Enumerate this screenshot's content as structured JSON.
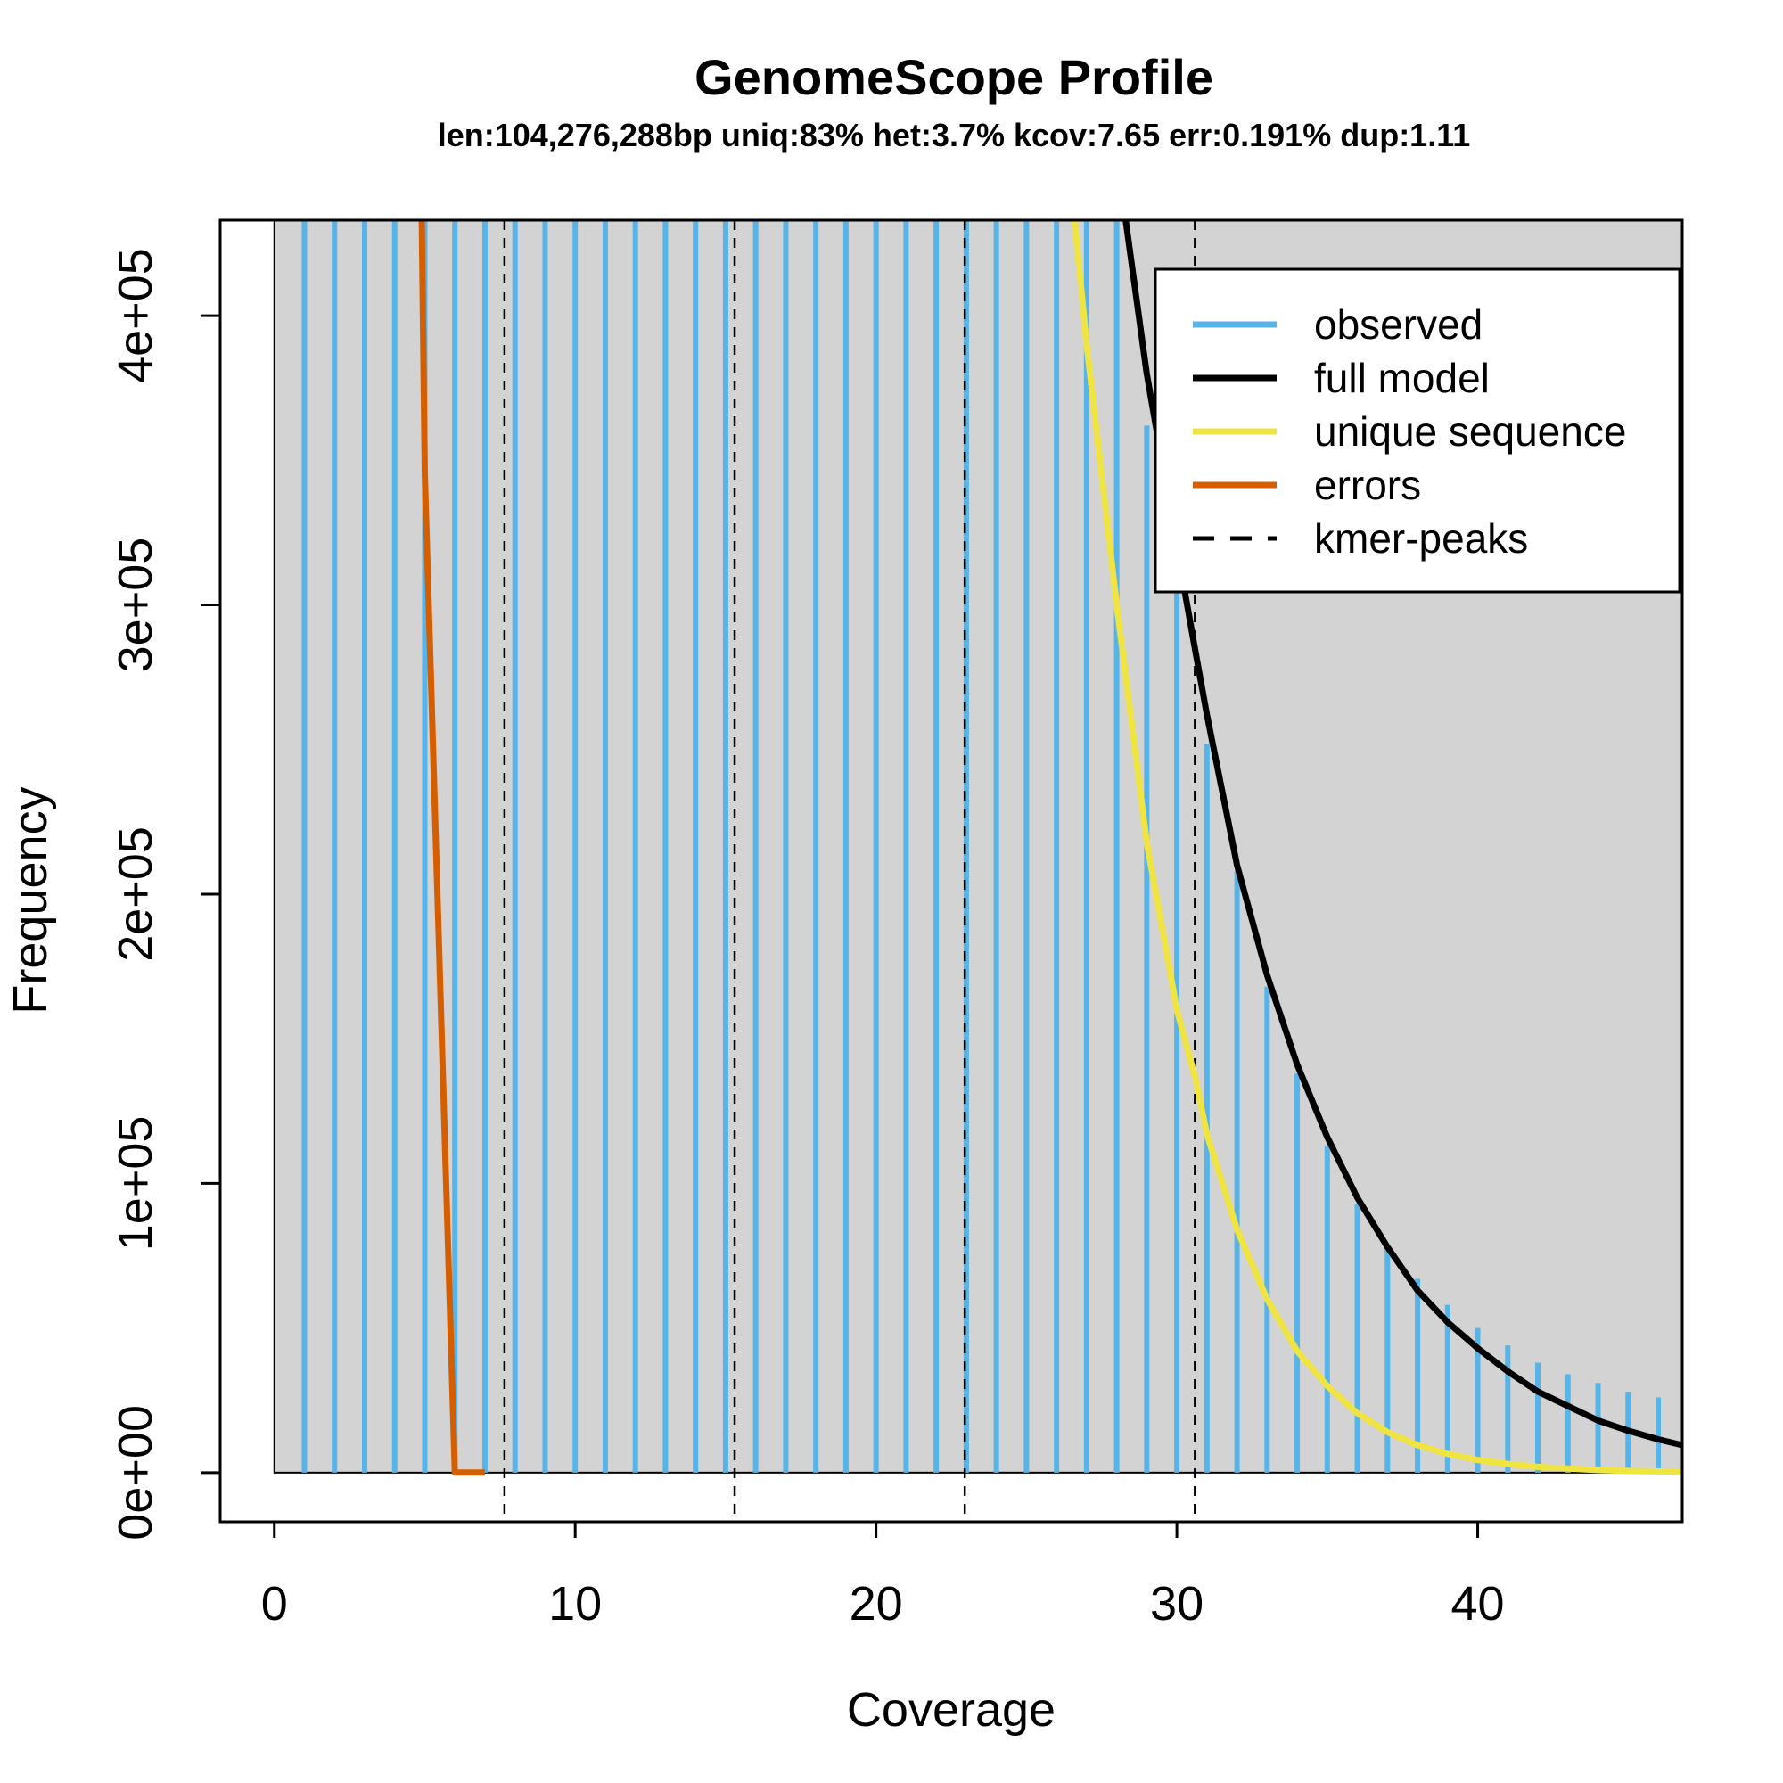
{
  "chart_data": {
    "type": "line",
    "title": "GenomeScope Profile",
    "subtitle": "len:104,276,288bp uniq:83% het:3.7% kcov:7.65 err:0.191% dup:1.11",
    "xlabel": "Coverage",
    "ylabel": "Frequency",
    "xlim": [
      -1.8,
      46.8
    ],
    "ylim": [
      -17000,
      433000
    ],
    "x_ticks": [
      0,
      10,
      20,
      30,
      40
    ],
    "x_tick_labels": [
      "0",
      "10",
      "20",
      "30",
      "40"
    ],
    "y_ticks": [
      0,
      100000,
      200000,
      300000,
      400000
    ],
    "y_tick_labels": [
      "0e+00",
      "1e+05",
      "2e+05",
      "3e+05",
      "4e+05"
    ],
    "legend_position": "top-right",
    "legend": [
      {
        "label": "observed",
        "color": "#56B4E9",
        "style": "solid"
      },
      {
        "label": "full model",
        "color": "#000000",
        "style": "solid"
      },
      {
        "label": "unique sequence",
        "color": "#F0E442",
        "style": "solid"
      },
      {
        "label": "errors",
        "color": "#D55E00",
        "style": "solid"
      },
      {
        "label": "kmer-peaks",
        "color": "#000000",
        "style": "dashed"
      }
    ],
    "colors": {
      "background": "#D3D3D3",
      "observed": "#56B4E9",
      "full_model": "#000000",
      "unique_sequence": "#F0E442",
      "errors": "#D55E00",
      "kmer_peaks": "#000000"
    },
    "observed": {
      "name": "observed",
      "x": [
        1,
        2,
        3,
        4,
        5,
        6,
        7,
        8,
        9,
        10,
        11,
        12,
        13,
        14,
        15,
        16,
        17,
        18,
        19,
        20,
        21,
        22,
        23,
        24,
        25,
        26,
        27,
        28,
        29,
        30,
        31,
        32,
        33,
        34,
        35,
        36,
        37,
        38,
        39,
        40,
        41,
        42,
        43,
        44,
        45,
        46
      ],
      "y": [
        433000,
        433000,
        433000,
        433000,
        433000,
        433000,
        433000,
        433000,
        433000,
        433000,
        433000,
        433000,
        433000,
        433000,
        433000,
        433000,
        433000,
        433000,
        433000,
        433000,
        433000,
        433000,
        433000,
        433000,
        433000,
        433000,
        433000,
        433000,
        362000,
        305000,
        252000,
        208000,
        168000,
        138000,
        113000,
        93000,
        78000,
        67000,
        58000,
        50000,
        44000,
        38000,
        34000,
        31000,
        28000,
        26000
      ]
    },
    "full_model": {
      "name": "full model",
      "x": [
        28.3,
        29,
        30,
        30.6,
        31,
        32,
        33,
        34,
        35,
        36,
        37,
        38,
        39,
        40,
        41,
        42,
        43,
        44,
        45,
        46,
        46.8
      ],
      "y": [
        433000,
        380000,
        320000,
        285000,
        262000,
        210000,
        172000,
        141000,
        116000,
        95000,
        78000,
        63000,
        52000,
        43000,
        35000,
        28000,
        23000,
        18000,
        14500,
        11500,
        9500
      ]
    },
    "unique_sequence": {
      "name": "unique sequence",
      "x": [
        26.6,
        27,
        28,
        29,
        30,
        30.6,
        31,
        32,
        33,
        34,
        35,
        36,
        37,
        38,
        39,
        40,
        41,
        42,
        43,
        44,
        45,
        46,
        46.8
      ],
      "y": [
        433000,
        390000,
        300000,
        218000,
        160000,
        137000,
        117000,
        84000,
        60000,
        42000,
        30000,
        20500,
        14000,
        9500,
        6500,
        4400,
        3000,
        2000,
        1400,
        900,
        600,
        400,
        300
      ]
    },
    "errors": {
      "name": "errors",
      "x": [
        4.9,
        5,
        6,
        7
      ],
      "y": [
        433000,
        345000,
        0,
        0
      ]
    },
    "kmer_peaks": [
      7.65,
      15.3,
      22.95,
      30.6
    ]
  }
}
